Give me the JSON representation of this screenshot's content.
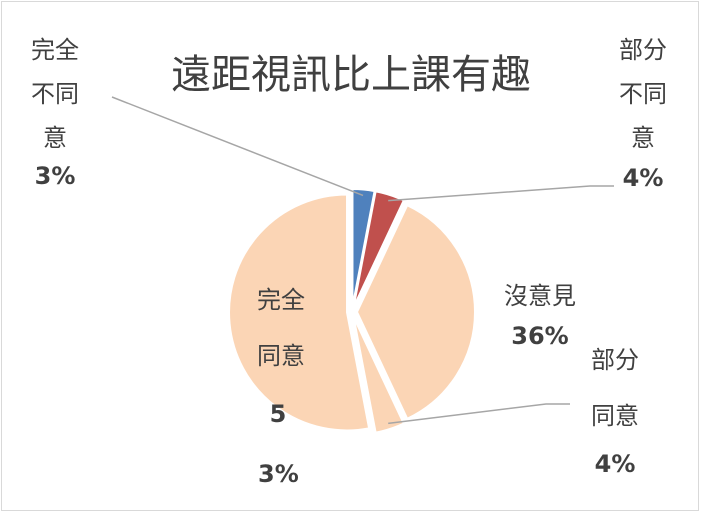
{
  "chart_data": {
    "type": "pie",
    "title": "遠距視訊比上課有趣",
    "categories": [
      "完全不同意",
      "部分不同意",
      "沒意見",
      "部分同意",
      "完全同意"
    ],
    "values": [
      3,
      4,
      36,
      4,
      53
    ],
    "value_labels": [
      "3%",
      "4%",
      "36%",
      "4%",
      "53%"
    ],
    "colors": [
      "#4f81bd",
      "#c0504d",
      "#fbd5b5",
      "#fbd5b5",
      "#fbd5b5"
    ]
  }
}
